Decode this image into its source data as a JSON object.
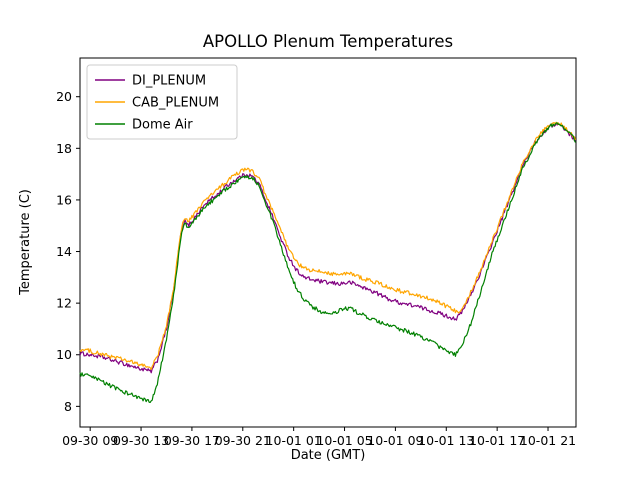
{
  "chart_data": {
    "type": "line",
    "title": "APOLLO Plenum Temperatures",
    "xlabel": "Date (GMT)",
    "ylabel": "Temperature (C)",
    "grid": false,
    "legend_position": "upper left",
    "background_color": "#ffffff",
    "axes_edge_color": "#000000",
    "legend_edge_color": "#cccccc",
    "xlim": [
      8.2,
      47.2
    ],
    "ylim": [
      7.2,
      21.5
    ],
    "yticks": [
      8,
      10,
      12,
      14,
      16,
      18,
      20
    ],
    "xticks": [
      {
        "v": 9,
        "label": "09-30 09"
      },
      {
        "v": 13,
        "label": "09-30 13"
      },
      {
        "v": 17,
        "label": "09-30 17"
      },
      {
        "v": 21,
        "label": "09-30 21"
      },
      {
        "v": 25,
        "label": "10-01 01"
      },
      {
        "v": 29,
        "label": "10-01 05"
      },
      {
        "v": 33,
        "label": "10-01 09"
      },
      {
        "v": 37,
        "label": "10-01 13"
      },
      {
        "v": 41,
        "label": "10-01 17"
      },
      {
        "v": 45,
        "label": "10-01 21"
      }
    ],
    "x_axis_note": "hours offset within dates shown on tick labels",
    "noise_amplitude": 0.08,
    "series": [
      {
        "name": "DI_PLENUM",
        "color": "#800080",
        "keypoints": [
          [
            8.2,
            10.05
          ],
          [
            9,
            10.0
          ],
          [
            10,
            9.9
          ],
          [
            11,
            9.75
          ],
          [
            12,
            9.6
          ],
          [
            13,
            9.45
          ],
          [
            13.8,
            9.35
          ],
          [
            14.3,
            9.8
          ],
          [
            15,
            11.0
          ],
          [
            15.6,
            12.6
          ],
          [
            16.1,
            14.6
          ],
          [
            16.4,
            15.2
          ],
          [
            16.7,
            15.0
          ],
          [
            17.2,
            15.3
          ],
          [
            17.8,
            15.7
          ],
          [
            18.4,
            16.0
          ],
          [
            19,
            16.2
          ],
          [
            19.6,
            16.5
          ],
          [
            20.2,
            16.7
          ],
          [
            20.8,
            16.9
          ],
          [
            21.3,
            17.0
          ],
          [
            21.8,
            16.9
          ],
          [
            22.3,
            16.6
          ],
          [
            22.8,
            16.0
          ],
          [
            23.4,
            15.3
          ],
          [
            24,
            14.5
          ],
          [
            24.6,
            13.8
          ],
          [
            25.2,
            13.3
          ],
          [
            25.8,
            13.0
          ],
          [
            26.5,
            12.9
          ],
          [
            27.5,
            12.8
          ],
          [
            28.5,
            12.75
          ],
          [
            29.5,
            12.8
          ],
          [
            30.5,
            12.6
          ],
          [
            31.5,
            12.4
          ],
          [
            32.5,
            12.15
          ],
          [
            33.5,
            12.0
          ],
          [
            34.5,
            11.9
          ],
          [
            35.5,
            11.75
          ],
          [
            36.5,
            11.6
          ],
          [
            37.3,
            11.45
          ],
          [
            37.8,
            11.4
          ],
          [
            38.3,
            11.7
          ],
          [
            39,
            12.4
          ],
          [
            39.8,
            13.3
          ],
          [
            40.6,
            14.3
          ],
          [
            41.4,
            15.3
          ],
          [
            42.2,
            16.3
          ],
          [
            43,
            17.3
          ],
          [
            43.8,
            18.1
          ],
          [
            44.4,
            18.5
          ],
          [
            45,
            18.8
          ],
          [
            45.6,
            18.95
          ],
          [
            46.1,
            18.85
          ],
          [
            46.6,
            18.6
          ],
          [
            47.2,
            18.3
          ]
        ]
      },
      {
        "name": "CAB_PLENUM",
        "color": "#ffa500",
        "keypoints": [
          [
            8.2,
            10.2
          ],
          [
            9,
            10.15
          ],
          [
            10,
            10.0
          ],
          [
            11,
            9.9
          ],
          [
            12,
            9.75
          ],
          [
            13,
            9.6
          ],
          [
            13.8,
            9.5
          ],
          [
            14.3,
            9.95
          ],
          [
            15,
            11.1
          ],
          [
            15.6,
            12.7
          ],
          [
            16.1,
            14.7
          ],
          [
            16.4,
            15.35
          ],
          [
            16.7,
            15.15
          ],
          [
            17.2,
            15.45
          ],
          [
            17.8,
            15.85
          ],
          [
            18.4,
            16.15
          ],
          [
            19,
            16.4
          ],
          [
            19.6,
            16.65
          ],
          [
            20.2,
            16.9
          ],
          [
            20.8,
            17.1
          ],
          [
            21.3,
            17.2
          ],
          [
            21.8,
            17.1
          ],
          [
            22.3,
            16.8
          ],
          [
            22.8,
            16.2
          ],
          [
            23.4,
            15.5
          ],
          [
            24,
            14.8
          ],
          [
            24.6,
            14.1
          ],
          [
            25.2,
            13.6
          ],
          [
            25.8,
            13.35
          ],
          [
            26.5,
            13.25
          ],
          [
            27.5,
            13.2
          ],
          [
            28.5,
            13.1
          ],
          [
            29.5,
            13.15
          ],
          [
            30.5,
            12.95
          ],
          [
            31.5,
            12.8
          ],
          [
            32.5,
            12.6
          ],
          [
            33.5,
            12.45
          ],
          [
            34.5,
            12.35
          ],
          [
            35.5,
            12.2
          ],
          [
            36.5,
            12.0
          ],
          [
            37.3,
            11.8
          ],
          [
            37.9,
            11.65
          ],
          [
            38.4,
            11.9
          ],
          [
            39,
            12.5
          ],
          [
            39.8,
            13.4
          ],
          [
            40.6,
            14.4
          ],
          [
            41.4,
            15.4
          ],
          [
            42.2,
            16.4
          ],
          [
            43,
            17.4
          ],
          [
            43.8,
            18.15
          ],
          [
            44.4,
            18.55
          ],
          [
            45,
            18.85
          ],
          [
            45.6,
            19.0
          ],
          [
            46.1,
            18.9
          ],
          [
            46.6,
            18.65
          ],
          [
            47.2,
            18.35
          ]
        ]
      },
      {
        "name": "Dome Air",
        "color": "#008000",
        "keypoints": [
          [
            8.2,
            9.25
          ],
          [
            9,
            9.15
          ],
          [
            10,
            8.95
          ],
          [
            11,
            8.7
          ],
          [
            12,
            8.5
          ],
          [
            13,
            8.3
          ],
          [
            13.8,
            8.15
          ],
          [
            14.3,
            8.9
          ],
          [
            15,
            10.6
          ],
          [
            15.6,
            12.4
          ],
          [
            16.1,
            14.5
          ],
          [
            16.4,
            15.1
          ],
          [
            16.7,
            14.9
          ],
          [
            17.2,
            15.2
          ],
          [
            17.8,
            15.6
          ],
          [
            18.4,
            15.9
          ],
          [
            19,
            16.1
          ],
          [
            19.6,
            16.4
          ],
          [
            20.2,
            16.6
          ],
          [
            20.8,
            16.8
          ],
          [
            21.3,
            16.9
          ],
          [
            21.8,
            16.85
          ],
          [
            22.3,
            16.55
          ],
          [
            22.8,
            15.9
          ],
          [
            23.4,
            15.1
          ],
          [
            24,
            14.2
          ],
          [
            24.6,
            13.3
          ],
          [
            25.2,
            12.6
          ],
          [
            25.8,
            12.15
          ],
          [
            26.5,
            11.85
          ],
          [
            27.2,
            11.65
          ],
          [
            28,
            11.55
          ],
          [
            28.7,
            11.75
          ],
          [
            29.4,
            11.8
          ],
          [
            30.2,
            11.6
          ],
          [
            31,
            11.4
          ],
          [
            32,
            11.2
          ],
          [
            33,
            11.05
          ],
          [
            34,
            10.9
          ],
          [
            35,
            10.7
          ],
          [
            36,
            10.45
          ],
          [
            37,
            10.15
          ],
          [
            37.7,
            10.0
          ],
          [
            38.2,
            10.3
          ],
          [
            39,
            11.3
          ],
          [
            39.8,
            12.6
          ],
          [
            40.6,
            13.9
          ],
          [
            41.4,
            15.0
          ],
          [
            42.2,
            16.1
          ],
          [
            43,
            17.2
          ],
          [
            43.8,
            18.0
          ],
          [
            44.4,
            18.45
          ],
          [
            45,
            18.8
          ],
          [
            45.6,
            19.0
          ],
          [
            46.1,
            18.9
          ],
          [
            46.6,
            18.65
          ],
          [
            47.2,
            18.25
          ]
        ]
      }
    ]
  }
}
